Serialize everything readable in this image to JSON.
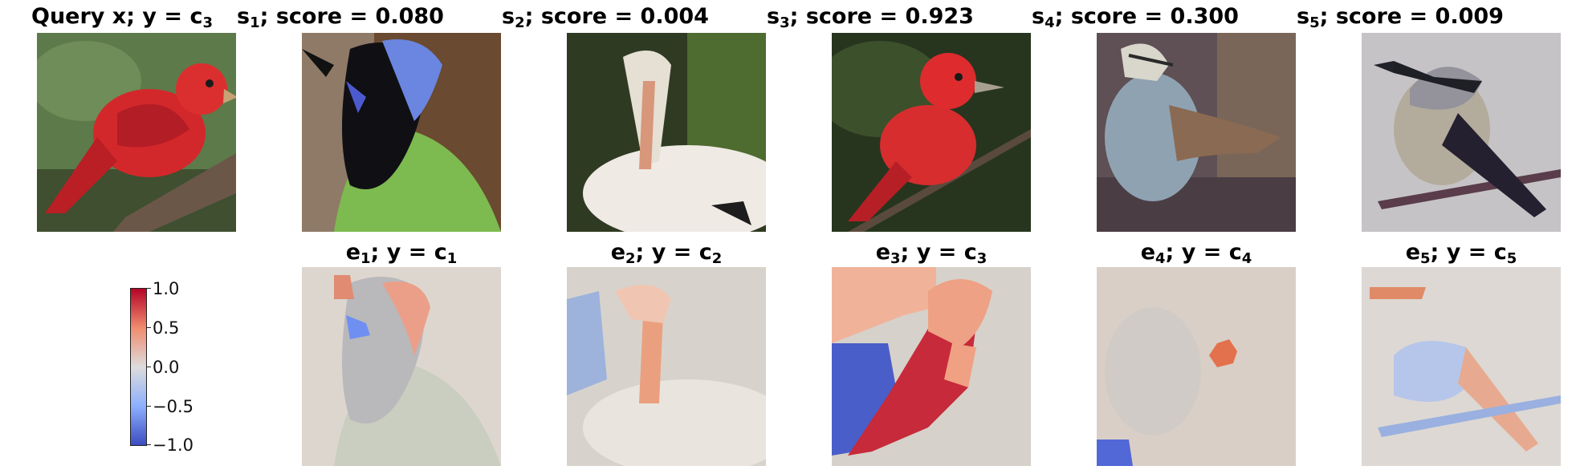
{
  "query": {
    "title_prefix": "Query x; y = c",
    "title_sub": "3"
  },
  "samples": [
    {
      "title_prefix": "s",
      "title_sub": "1",
      "title_suffix": "; score = 0.080",
      "exp_prefix": "e",
      "exp_sub": "1",
      "exp_mid": "; y = c",
      "exp_sub2": "1"
    },
    {
      "title_prefix": "s",
      "title_sub": "2",
      "title_suffix": "; score = 0.004",
      "exp_prefix": "e",
      "exp_sub": "2",
      "exp_mid": "; y = c",
      "exp_sub2": "2"
    },
    {
      "title_prefix": "s",
      "title_sub": "3",
      "title_suffix": "; score = 0.923",
      "exp_prefix": "e",
      "exp_sub": "3",
      "exp_mid": "; y = c",
      "exp_sub2": "3"
    },
    {
      "title_prefix": "s",
      "title_sub": "4",
      "title_suffix": "; score = 0.300",
      "exp_prefix": "e",
      "exp_sub": "4",
      "exp_mid": "; y = c",
      "exp_sub2": "4"
    },
    {
      "title_prefix": "s",
      "title_sub": "5",
      "title_suffix": "; score = 0.009",
      "exp_prefix": "e",
      "exp_sub": "5",
      "exp_mid": "; y = c",
      "exp_sub2": "5"
    }
  ],
  "colorbar": {
    "ticks": [
      "1.0",
      "0.5",
      "0.0",
      "−0.5",
      "−1.0"
    ],
    "colors": {
      "high": "#b40426",
      "mid": "#dddcdc",
      "low": "#3b4cc0"
    }
  }
}
